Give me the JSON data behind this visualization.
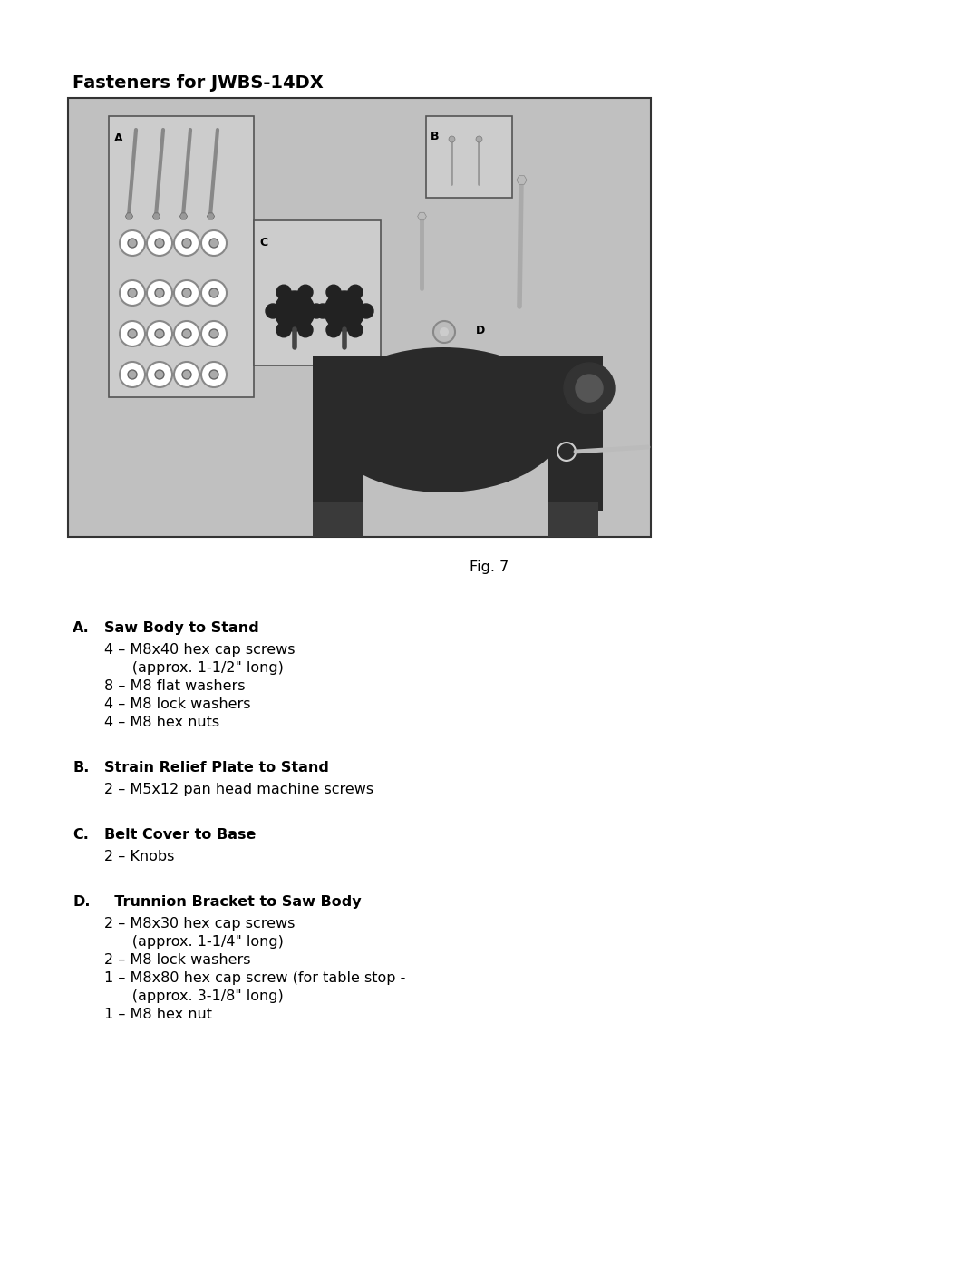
{
  "page_title": "Fasteners for JWBS-14DX",
  "fig_caption": "Fig. 7",
  "background_color": "#ffffff",
  "title_fontsize": 14,
  "body_fontsize": 11.5,
  "caption_fontsize": 11.5,
  "sections": [
    {
      "letter": "A.",
      "heading": "Saw Body to Stand",
      "items": [
        "4 – M8x40 hex cap screws",
        "      (approx. 1-1/2\" long)",
        "8 – M8 flat washers",
        "4 – M8 lock washers",
        "4 – M8 hex nuts"
      ]
    },
    {
      "letter": "B.",
      "heading": "Strain Relief Plate to Stand",
      "items": [
        "2 – M5x12 pan head machine screws"
      ]
    },
    {
      "letter": "C.",
      "heading": "Belt Cover to Base",
      "items": [
        "2 – Knobs"
      ]
    },
    {
      "letter": "D.",
      "heading": "  Trunnion Bracket to Saw Body",
      "items": [
        "2 – M8x30 hex cap screws",
        "      (approx. 1-1/4\" long)",
        "2 – M8 lock washers",
        "1 – M8x80 hex cap screw (for table stop -",
        "      (approx. 3-1/8\" long)",
        "1 – M8 hex nut"
      ]
    }
  ],
  "image_bg_color": "#c0c0c0",
  "image_border_color": "#333333"
}
